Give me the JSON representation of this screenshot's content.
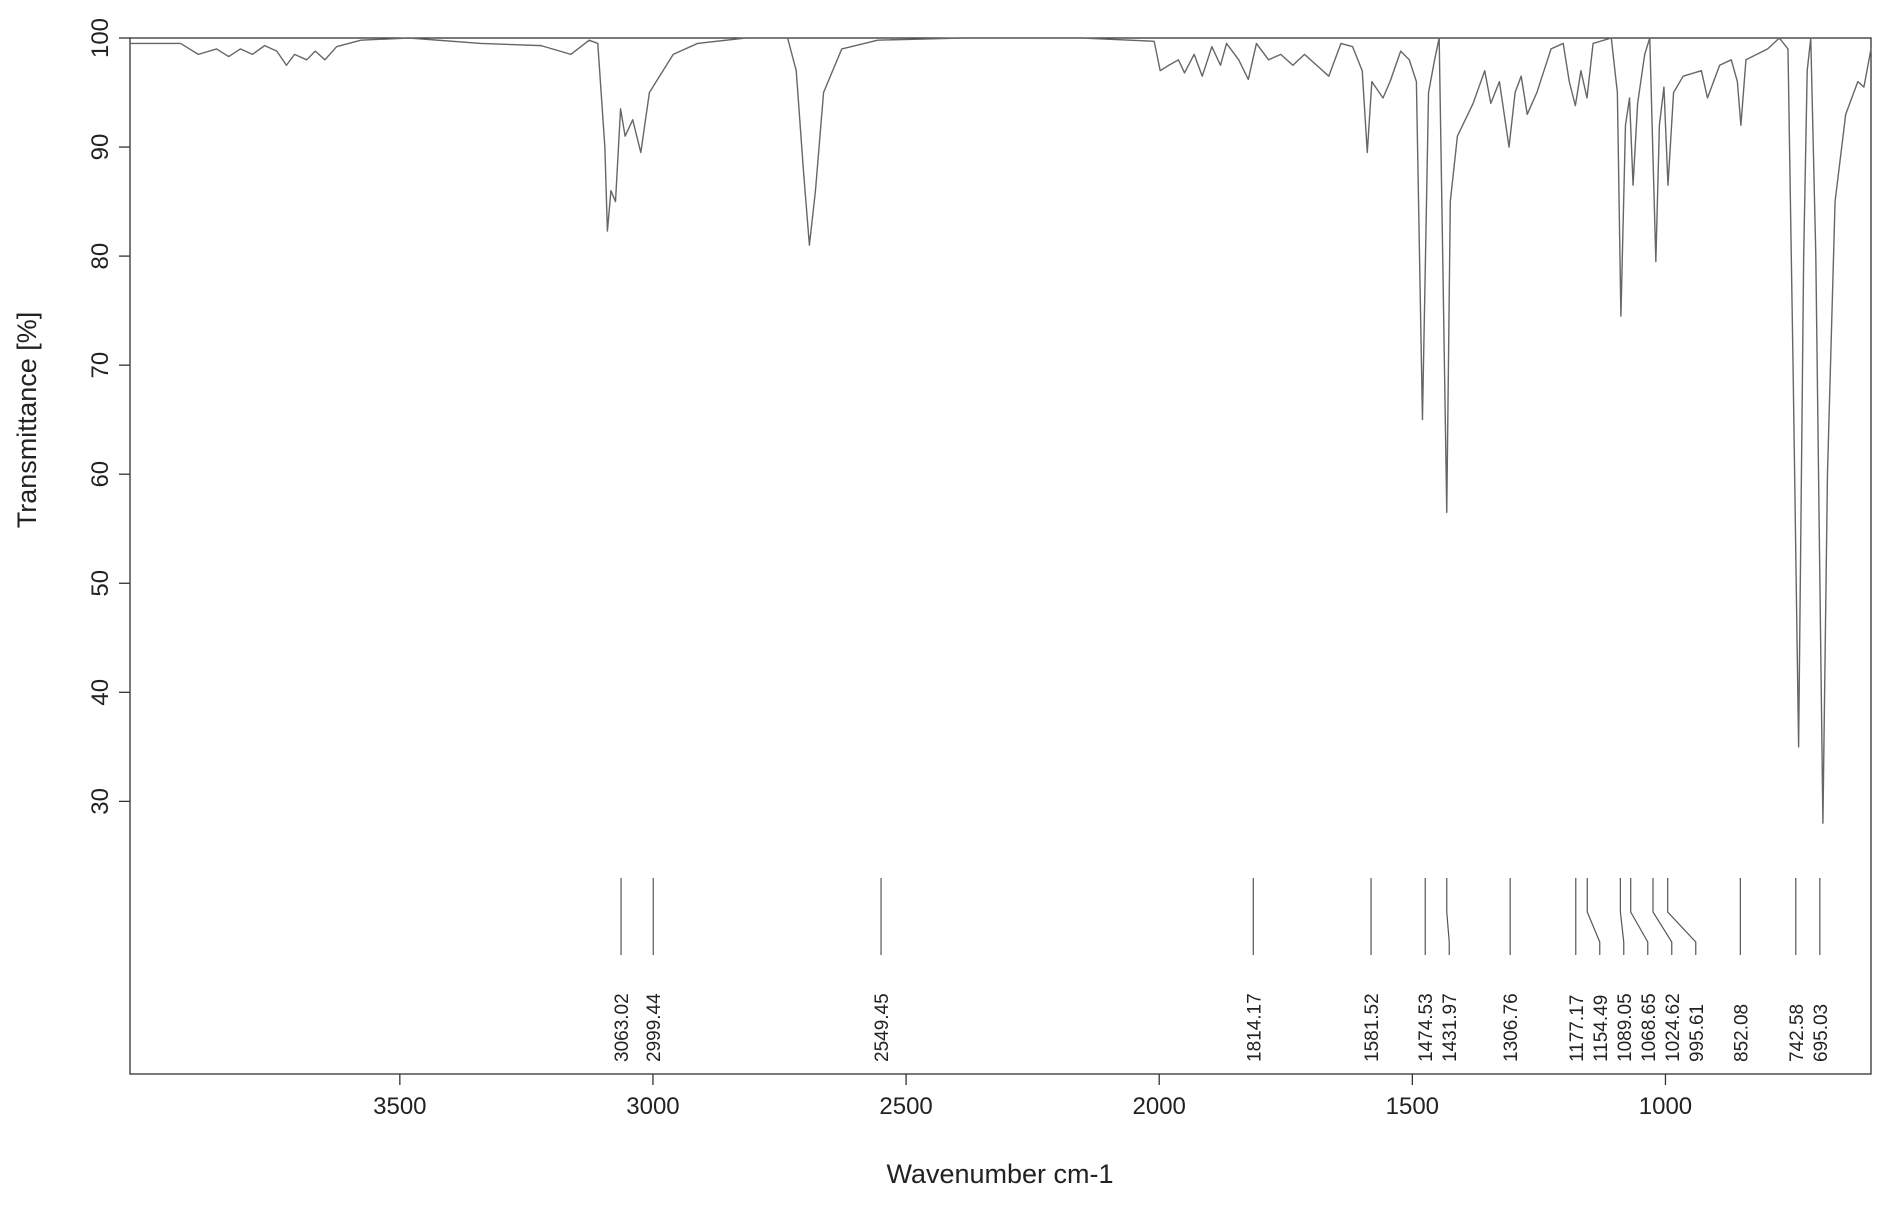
{
  "chart_data": {
    "type": "line",
    "x_label": "Wavenumber cm-1",
    "y_label": "Transmittance [%]",
    "xlim": [
      4033,
      594
    ],
    "ylim": [
      5,
      100
    ],
    "xticks": [
      3500,
      3000,
      2500,
      2000,
      1500,
      1000
    ],
    "yticks": [
      30,
      40,
      50,
      60,
      70,
      80,
      90,
      100
    ],
    "color": "#666666",
    "x": [
      4033,
      3933,
      3898,
      3862,
      3838,
      3815,
      3791,
      3767,
      3743,
      3724,
      3708,
      3684,
      3667,
      3648,
      3625,
      3577,
      3482,
      3340,
      3221,
      3162,
      3126,
      3109,
      3095,
      3090,
      3083,
      3074,
      3064,
      3055,
      3040,
      3024,
      3007,
      2960,
      2912,
      2817,
      2734,
      2717,
      2703,
      2691,
      2679,
      2663,
      2627,
      2556,
      2390,
      2152,
      2010,
      1998,
      1981,
      1962,
      1950,
      1931,
      1915,
      1896,
      1879,
      1867,
      1843,
      1824,
      1808,
      1784,
      1760,
      1736,
      1713,
      1689,
      1665,
      1641,
      1618,
      1599,
      1589,
      1580,
      1558,
      1544,
      1523,
      1506,
      1492,
      1480,
      1468,
      1456,
      1447,
      1440,
      1432,
      1425,
      1411,
      1380,
      1357,
      1345,
      1328,
      1309,
      1297,
      1285,
      1273,
      1254,
      1226,
      1202,
      1190,
      1178,
      1167,
      1155,
      1143,
      1107,
      1095,
      1088,
      1079,
      1071,
      1064,
      1055,
      1041,
      1031,
      1024,
      1019,
      1012,
      1003,
      995,
      984,
      965,
      929,
      917,
      893,
      870,
      858,
      851,
      841,
      798,
      775,
      758,
      748,
      737,
      727,
      720,
      713,
      703,
      689,
      680,
      665,
      644,
      620,
      608,
      594
    ],
    "values": [
      99.5,
      99.5,
      98.5,
      99,
      98.3,
      99,
      98.5,
      99.3,
      98.8,
      97.5,
      98.5,
      98,
      98.8,
      98,
      99.2,
      99.8,
      100,
      99.5,
      99.3,
      98.5,
      99.8,
      99.5,
      90,
      82.3,
      86,
      85,
      93.5,
      91,
      92.5,
      89.5,
      95,
      98.5,
      99.5,
      100,
      100,
      97,
      88,
      81,
      86,
      95,
      99,
      99.8,
      100,
      100,
      99.7,
      97,
      97.5,
      98,
      96.8,
      98.5,
      96.5,
      99.2,
      97.5,
      99.5,
      98,
      96.2,
      99.5,
      98,
      98.5,
      97.5,
      98.5,
      97.5,
      96.5,
      99.5,
      99.2,
      97,
      89.5,
      96,
      94.5,
      96,
      98.8,
      98,
      96,
      65,
      95,
      98,
      100,
      80,
      56.5,
      85,
      91,
      94,
      97,
      94,
      96,
      90,
      95,
      96.5,
      93,
      95,
      99,
      99.5,
      96,
      93.8,
      97,
      94.5,
      99.5,
      100,
      95,
      74.5,
      92,
      94.5,
      86.5,
      94,
      98.5,
      100,
      88,
      79.5,
      92,
      95.5,
      86.5,
      95,
      96.5,
      97,
      94.5,
      97.5,
      98,
      96,
      92,
      98,
      99,
      100,
      99,
      70,
      35,
      80,
      97,
      100,
      80,
      28,
      60,
      85,
      93,
      96,
      95.5,
      99
    ],
    "peaks": [
      3063.02,
      2999.44,
      2549.45,
      1814.17,
      1581.52,
      1474.53,
      1431.97,
      1306.76,
      1177.17,
      1154.49,
      1089.05,
      1068.65,
      1024.62,
      995.61,
      852.08,
      742.58,
      695.03
    ]
  }
}
